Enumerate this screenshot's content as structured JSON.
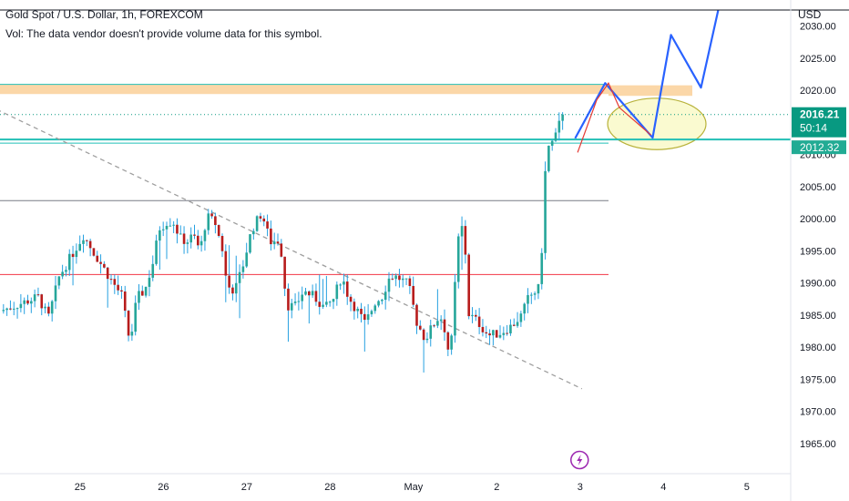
{
  "header": {
    "title": "Gold Spot / U.S. Dollar, 1h, FOREXCOM",
    "volume_note": "Vol: The data vendor doesn't provide volume data for this symbol."
  },
  "colors": {
    "bull": "#26a69a",
    "bear": "#b71c1c",
    "wick": "#26a0e0",
    "teal_line": "#22bfb6",
    "red_line": "#f23645",
    "gray_line": "#787b86",
    "orange_zone": "#fbd7a8",
    "ellipse_fill": "#fafad0",
    "ellipse_stroke": "#b8b23a",
    "projection_blue": "#2962ff",
    "projection_red": "#e53935",
    "trend_dash": "#9e9e9e",
    "price_badge": "#089981",
    "level_badge": "#22ab94",
    "lightning": "#9c27b0"
  },
  "chart_data": {
    "type": "candlestick",
    "symbol": "Gold Spot / U.S. Dollar",
    "timeframe": "1h",
    "currency": "USD",
    "x_tick_labels": [
      "25",
      "26",
      "27",
      "28",
      "May",
      "2",
      "3",
      "4",
      "5"
    ],
    "y_tick_labels": [
      "2030.00",
      "2025.00",
      "2020.00",
      "2015.00",
      "2010.00",
      "2005.00",
      "2000.00",
      "1995.00",
      "1990.00",
      "1985.00",
      "1980.00",
      "1975.00",
      "1970.00",
      "1965.00"
    ],
    "ylim": [
      1961.3,
      2034.0
    ],
    "xlim_days": [
      24.04,
      30.92
    ],
    "last_price": "2016.21",
    "countdown": "50:14",
    "level_label": "2012.32",
    "horizontal_levels": [
      {
        "price": 2012.32,
        "role": "support"
      },
      {
        "price": 2002.8,
        "role": "gray"
      },
      {
        "price": 1991.3,
        "role": "red"
      }
    ],
    "resistance_zone": [
      2019.4,
      2020.9
    ],
    "close_path": [
      [
        24.04,
        1985.6
      ],
      [
        24.5,
        1987.8
      ],
      [
        24.62,
        1984.5
      ],
      [
        24.75,
        1991.0
      ],
      [
        24.9,
        1994.3
      ],
      [
        25.04,
        1997.4
      ],
      [
        25.22,
        1993.6
      ],
      [
        25.36,
        1990.7
      ],
      [
        25.5,
        1988.0
      ],
      [
        25.6,
        1980.5
      ],
      [
        25.68,
        1987.6
      ],
      [
        25.78,
        1988.9
      ],
      [
        25.88,
        1993.4
      ],
      [
        25.95,
        1998.5
      ],
      [
        26.04,
        1999.5
      ],
      [
        26.12,
        1999.5
      ],
      [
        26.2,
        1997.0
      ],
      [
        26.28,
        1996.4
      ],
      [
        26.36,
        1997.4
      ],
      [
        26.44,
        1995.0
      ],
      [
        26.52,
        2000.3
      ],
      [
        26.62,
        1999.4
      ],
      [
        26.72,
        1994.6
      ],
      [
        26.76,
        1989.5
      ],
      [
        26.86,
        1988.8
      ],
      [
        26.96,
        1993.0
      ],
      [
        27.06,
        1998.3
      ],
      [
        27.18,
        2000.9
      ],
      [
        27.28,
        1996.4
      ],
      [
        27.4,
        1996.6
      ],
      [
        27.48,
        1986.5
      ],
      [
        27.58,
        1986.3
      ],
      [
        27.68,
        1988.7
      ],
      [
        27.8,
        1987.9
      ],
      [
        27.94,
        1986.0
      ],
      [
        28.04,
        1987.5
      ],
      [
        28.14,
        1991.1
      ],
      [
        28.22,
        1987.8
      ],
      [
        28.32,
        1985.8
      ],
      [
        28.42,
        1983.6
      ],
      [
        28.54,
        1987.0
      ],
      [
        28.62,
        1987.8
      ],
      [
        28.72,
        1991.1
      ],
      [
        28.82,
        1990.8
      ],
      [
        28.94,
        1989.7
      ],
      [
        29.04,
        1983.9
      ],
      [
        29.14,
        1981.2
      ],
      [
        29.24,
        1983.5
      ],
      [
        29.32,
        1985.0
      ],
      [
        29.38,
        1982.6
      ],
      [
        29.44,
        1977.7
      ],
      [
        29.5,
        1990.0
      ],
      [
        29.56,
        2000.3
      ],
      [
        29.62,
        1995.5
      ],
      [
        29.66,
        1985.2
      ],
      [
        29.78,
        1983.8
      ],
      [
        29.9,
        1981.8
      ],
      [
        30.04,
        1982.2
      ],
      [
        30.18,
        1983.3
      ],
      [
        30.3,
        1985.0
      ],
      [
        30.38,
        1987.7
      ],
      [
        30.44,
        1988.4
      ],
      [
        30.52,
        1989.3
      ],
      [
        30.58,
        2007.0
      ],
      [
        30.64,
        2012.8
      ],
      [
        30.68,
        2011.2
      ],
      [
        30.74,
        2014.8
      ],
      [
        30.79,
        2013.8
      ],
      [
        30.82,
        2016.21
      ]
    ],
    "projection_blue": [
      [
        30.94,
        2012.5
      ],
      [
        31.3,
        2021.1
      ],
      [
        31.87,
        2012.6
      ],
      [
        32.09,
        2028.6
      ],
      [
        32.45,
        2020.4
      ],
      [
        32.7,
        2035.0
      ]
    ],
    "projection_red": [
      [
        30.97,
        2010.3
      ],
      [
        31.2,
        2018.5
      ],
      [
        31.34,
        2021.1
      ],
      [
        31.47,
        2017.3
      ],
      [
        31.85,
        2013.0
      ]
    ],
    "ellipse": {
      "center": [
        31.92,
        2014.75
      ],
      "radii_days_price": [
        0.59,
        4.0
      ]
    },
    "trendline": {
      "from": [
        24.0,
        2017.0
      ],
      "to": [
        31.0,
        1973.5
      ]
    }
  }
}
